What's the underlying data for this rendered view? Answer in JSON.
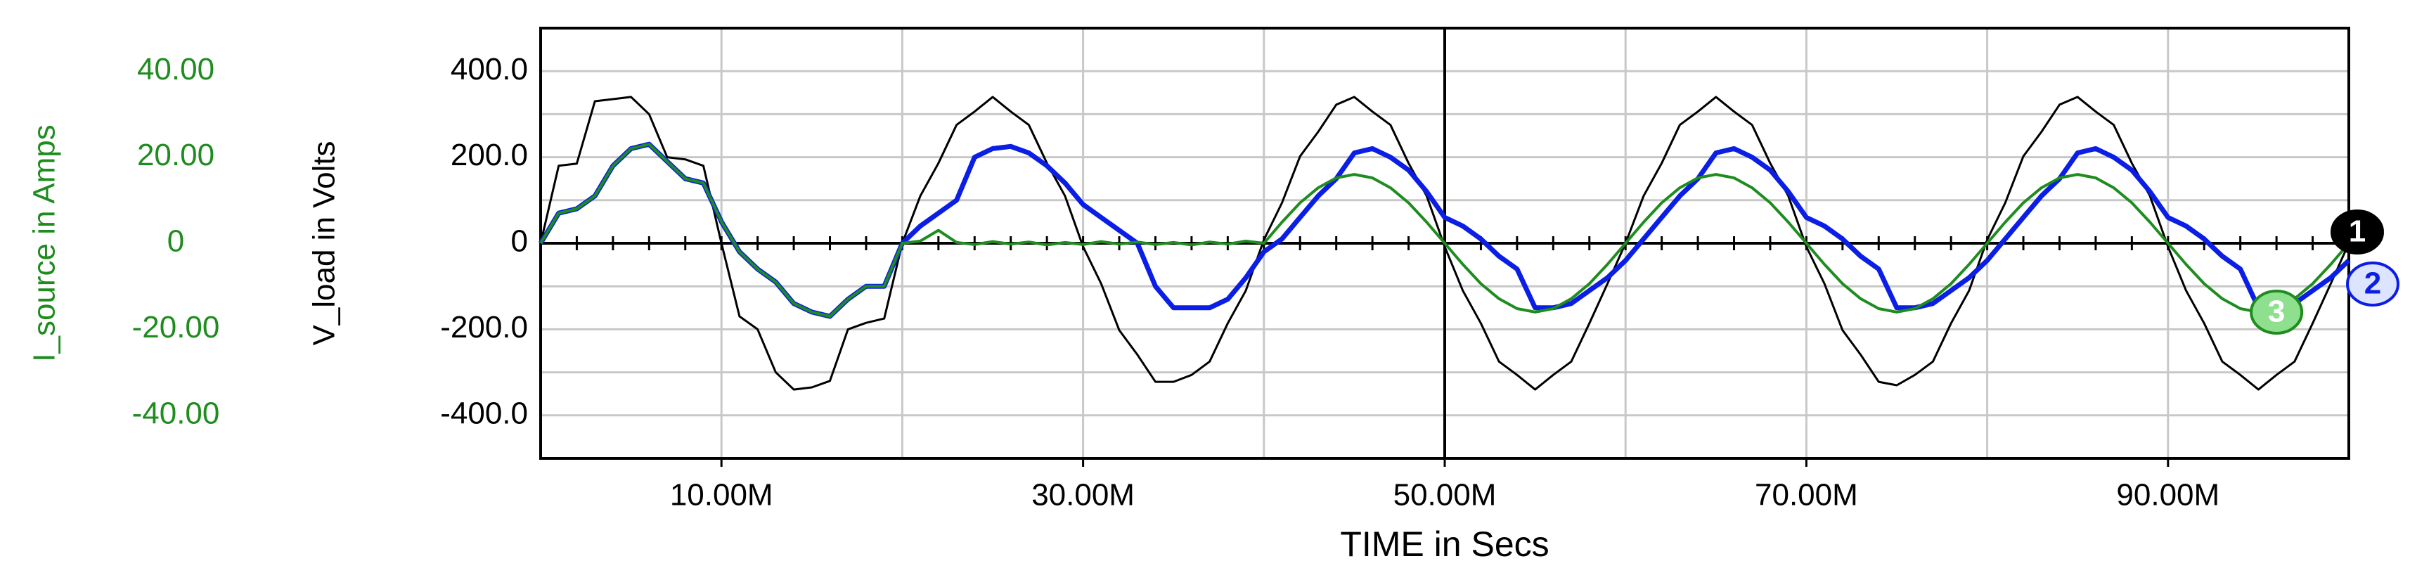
{
  "chart_data": {
    "type": "line",
    "xlabel": "TIME in Secs",
    "ylabel": "V_load in Volts",
    "y2label": "I_source in Amps",
    "x": [
      0,
      1,
      2,
      3,
      4,
      5,
      6,
      7,
      8,
      9,
      10,
      11,
      12,
      13,
      14,
      15,
      16,
      17,
      18,
      19,
      20,
      21,
      22,
      23,
      24,
      25,
      26,
      27,
      28,
      29,
      30,
      31,
      32,
      33,
      34,
      35,
      36,
      37,
      38,
      39,
      40,
      41,
      42,
      43,
      44,
      45,
      46,
      47,
      48,
      49,
      50,
      51,
      52,
      53,
      54,
      55,
      56,
      57,
      58,
      59,
      60,
      61,
      62,
      63,
      64,
      65,
      66,
      67,
      68,
      69,
      70,
      71,
      72,
      73,
      74,
      75,
      76,
      77,
      78,
      79,
      80,
      81,
      82,
      83,
      84,
      85,
      86,
      87,
      88,
      89,
      90,
      91,
      92,
      93,
      94,
      95,
      96,
      97,
      98,
      99,
      100
    ],
    "xlim": [
      0,
      100
    ],
    "xticks": [
      {
        "value": 10,
        "label": "10.00M"
      },
      {
        "value": 30,
        "label": "30.00M"
      },
      {
        "value": 50,
        "label": "50.00M"
      },
      {
        "value": 70,
        "label": "70.00M"
      },
      {
        "value": 90,
        "label": "90.00M"
      }
    ],
    "xgrid": [
      10,
      20,
      30,
      40,
      50,
      60,
      70,
      80,
      90
    ],
    "ylim": [
      -500,
      500
    ],
    "yticks": [
      {
        "value": 400,
        "label": "400.0"
      },
      {
        "value": 200,
        "label": "200.0"
      },
      0,
      {
        "value": -200,
        "label": "-200.0"
      },
      {
        "value": -400,
        "label": "-400.0"
      }
    ],
    "ygrid": [
      -400,
      -300,
      -200,
      -100,
      0,
      100,
      200,
      300,
      400
    ],
    "y2lim": [
      -50,
      50
    ],
    "y2ticks": [
      {
        "value": 40,
        "label": "40.00"
      },
      {
        "value": 20,
        "label": "20.00"
      },
      0,
      {
        "value": -20,
        "label": "-20.00"
      },
      {
        "value": -40,
        "label": "-40.00"
      }
    ],
    "grid": true,
    "series": [
      {
        "name": "1",
        "color": "#000000",
        "values": [
          0,
          180,
          185,
          330,
          335,
          340,
          300,
          200,
          195,
          180,
          0,
          -170,
          -200,
          -300,
          -340,
          -335,
          -320,
          -200,
          -185,
          -175,
          0,
          110,
          186,
          275,
          306,
          340,
          306,
          275,
          186,
          110,
          -8,
          -94,
          -202,
          -259,
          -322,
          -322,
          -306,
          -275,
          -186,
          -110,
          8,
          94,
          202,
          259,
          322,
          340,
          306,
          275,
          186,
          110,
          -8,
          -110,
          -186,
          -275,
          -306,
          -340,
          -306,
          -275,
          -186,
          -94,
          0,
          110,
          186,
          275,
          306,
          340,
          306,
          275,
          186,
          110,
          -8,
          -94,
          -202,
          -259,
          -322,
          -330,
          -306,
          -275,
          -186,
          -110,
          8,
          94,
          202,
          259,
          322,
          340,
          306,
          275,
          186,
          110,
          -8,
          -110,
          -186,
          -275,
          -306,
          -340,
          -306,
          -275,
          -186,
          -94,
          0
        ]
      },
      {
        "name": "2",
        "color": "#0a1ee6",
        "values": [
          0,
          70,
          80,
          110,
          180,
          220,
          230,
          190,
          150,
          140,
          50,
          -20,
          -60,
          -90,
          -140,
          -160,
          -170,
          -130,
          -100,
          -100,
          0,
          40,
          70,
          100,
          200,
          220,
          225,
          210,
          180,
          140,
          90,
          60,
          30,
          0,
          -100,
          -150,
          -150,
          -150,
          -130,
          -80,
          -20,
          10,
          60,
          110,
          150,
          210,
          220,
          200,
          170,
          120,
          60,
          40,
          10,
          -30,
          -60,
          -150,
          -150,
          -140,
          -110,
          -80,
          -40,
          10,
          60,
          110,
          150,
          210,
          220,
          200,
          170,
          120,
          60,
          40,
          10,
          -30,
          -60,
          -150,
          -150,
          -140,
          -110,
          -80,
          -40,
          10,
          60,
          110,
          150,
          210,
          220,
          200,
          170,
          120,
          60,
          40,
          10,
          -30,
          -60,
          -150,
          -150,
          -140,
          -110,
          -80,
          -40
        ]
      },
      {
        "name": "3",
        "color": "#1e8c1e",
        "axis": "y2",
        "values": [
          0,
          7,
          8,
          11,
          18,
          22,
          23,
          19,
          15,
          14,
          5,
          -2,
          -6,
          -9,
          -14,
          -16,
          -17,
          -13,
          -10,
          -10,
          0,
          0.5,
          3,
          0.2,
          -0.3,
          0.4,
          -0.2,
          0.3,
          -0.4,
          0.2,
          -0.3,
          0.4,
          -0.2,
          0.3,
          -0.3,
          0.2,
          -0.4,
          0.3,
          -0.2,
          0.5,
          0,
          4.9,
          9.4,
          12.9,
          15.2,
          16,
          15.2,
          12.9,
          9.4,
          4.9,
          0,
          -4.9,
          -9.4,
          -12.9,
          -15.2,
          -16,
          -15.2,
          -12.9,
          -9.4,
          -4.9,
          0,
          4.9,
          9.4,
          12.9,
          15.2,
          16,
          15.2,
          12.9,
          9.4,
          4.9,
          0,
          -4.9,
          -9.4,
          -12.9,
          -15.2,
          -16,
          -15.2,
          -12.9,
          -9.4,
          -4.9,
          0,
          4.9,
          9.4,
          12.9,
          15.2,
          16,
          15.2,
          12.9,
          9.4,
          4.9,
          0,
          -4.9,
          -9.4,
          -12.9,
          -15.2,
          -16,
          -15.2,
          -12.9,
          -9.4,
          -4.9,
          0
        ]
      }
    ]
  }
}
